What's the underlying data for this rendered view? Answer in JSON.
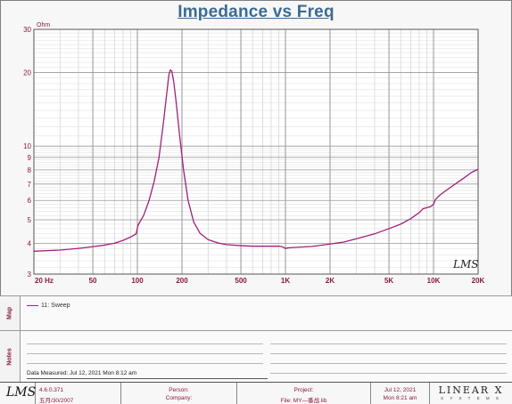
{
  "chart_data": {
    "type": "line",
    "title": "Impedance vs Freq",
    "ylabel": "Ohm",
    "xlabel": "",
    "xscale": "log",
    "yscale": "log",
    "xlim": [
      20,
      20000
    ],
    "ylim": [
      3,
      30
    ],
    "grid": true,
    "x_tick_labels": [
      {
        "value": 20,
        "label": "20  Hz"
      },
      {
        "value": 50,
        "label": "50"
      },
      {
        "value": 100,
        "label": "100"
      },
      {
        "value": 200,
        "label": "200"
      },
      {
        "value": 500,
        "label": "500"
      },
      {
        "value": 1000,
        "label": "1K"
      },
      {
        "value": 2000,
        "label": "2K"
      },
      {
        "value": 5000,
        "label": "5K"
      },
      {
        "value": 10000,
        "label": "10K"
      },
      {
        "value": 20000,
        "label": "20K"
      }
    ],
    "y_tick_labels": [
      {
        "value": 3,
        "label": "3"
      },
      {
        "value": 4,
        "label": "4"
      },
      {
        "value": 5,
        "label": "5"
      },
      {
        "value": 6,
        "label": "6"
      },
      {
        "value": 7,
        "label": "7"
      },
      {
        "value": 8,
        "label": "8"
      },
      {
        "value": 9,
        "label": "9"
      },
      {
        "value": 10,
        "label": "10"
      },
      {
        "value": 20,
        "label": "20"
      },
      {
        "value": 30,
        "label": "30"
      }
    ],
    "series": [
      {
        "name": "11: Sweep",
        "color": "#a0207a",
        "points": [
          [
            20,
            3.72
          ],
          [
            30,
            3.76
          ],
          [
            40,
            3.82
          ],
          [
            50,
            3.88
          ],
          [
            60,
            3.94
          ],
          [
            70,
            4.01
          ],
          [
            80,
            4.12
          ],
          [
            90,
            4.25
          ],
          [
            98,
            4.38
          ],
          [
            101,
            4.75
          ],
          [
            110,
            5.2
          ],
          [
            120,
            6.0
          ],
          [
            130,
            7.2
          ],
          [
            140,
            9.0
          ],
          [
            150,
            12.5
          ],
          [
            158,
            16.5
          ],
          [
            163,
            19.5
          ],
          [
            167,
            20.5
          ],
          [
            171,
            20.2
          ],
          [
            176,
            18.3
          ],
          [
            183,
            15.0
          ],
          [
            193,
            11.0
          ],
          [
            205,
            8.0
          ],
          [
            220,
            6.0
          ],
          [
            240,
            4.9
          ],
          [
            265,
            4.4
          ],
          [
            300,
            4.15
          ],
          [
            350,
            4.02
          ],
          [
            400,
            3.96
          ],
          [
            500,
            3.92
          ],
          [
            600,
            3.9
          ],
          [
            700,
            3.9
          ],
          [
            800,
            3.9
          ],
          [
            900,
            3.9
          ],
          [
            950,
            3.88
          ],
          [
            1000,
            3.82
          ],
          [
            1050,
            3.84
          ],
          [
            1200,
            3.86
          ],
          [
            1500,
            3.89
          ],
          [
            2000,
            3.98
          ],
          [
            2500,
            4.06
          ],
          [
            3000,
            4.18
          ],
          [
            4000,
            4.38
          ],
          [
            5000,
            4.6
          ],
          [
            6000,
            4.8
          ],
          [
            7000,
            5.05
          ],
          [
            8000,
            5.35
          ],
          [
            8500,
            5.55
          ],
          [
            9500,
            5.65
          ],
          [
            10000,
            5.78
          ],
          [
            10300,
            6.05
          ],
          [
            11000,
            6.3
          ],
          [
            12000,
            6.55
          ],
          [
            14000,
            7.0
          ],
          [
            16000,
            7.4
          ],
          [
            18000,
            7.8
          ],
          [
            20000,
            8.05
          ]
        ]
      }
    ],
    "watermark": "LMS"
  },
  "map": {
    "label": "Map",
    "legend_label": "11: Sweep"
  },
  "notes": {
    "label": "Notes",
    "date_measured": "Data Measured: Jul 12, 2021  Mon  8:12 am"
  },
  "footer": {
    "logo": "LMS",
    "version": "4.6.0.371",
    "version_date": "五月/30/2007",
    "person_label": "Person:",
    "company_label": "Company:",
    "project_label": "Project:",
    "file_label": "File: MY—番战.lib",
    "date": "Jul 12, 2021",
    "time": "Mon  8:21 am",
    "brand": "LINEAR X",
    "brand_sub": "S Y S T E M S"
  }
}
